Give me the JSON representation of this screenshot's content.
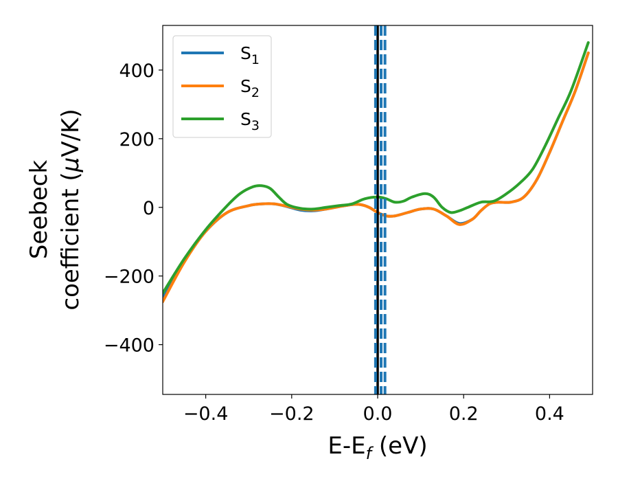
{
  "chart_data": {
    "type": "line",
    "xlabel_main": "E-E",
    "xlabel_sub": "f",
    "xlabel_unit": " (eV)",
    "ylabel_line1": "Seebeck",
    "ylabel_line2_prefix": "coefficient  (",
    "ylabel_mu": "μ",
    "ylabel_line2_suffix": "V/K)",
    "xlim": [
      -0.5,
      0.5
    ],
    "ylim": [
      -545,
      530
    ],
    "xticks": [
      -0.4,
      -0.2,
      0.0,
      0.2,
      0.4
    ],
    "xtick_labels": [
      "−0.4",
      "−0.2",
      "0.0",
      "0.2",
      "0.4"
    ],
    "yticks": [
      -400,
      -200,
      0,
      200,
      400
    ],
    "ytick_labels": [
      "−400",
      "−200",
      "0",
      "200",
      "400"
    ],
    "grid": false,
    "legend_position": "top-left",
    "vertical_lines": [
      {
        "x": 0.0,
        "style": "solid",
        "color": "#000000"
      },
      {
        "x": -0.005,
        "style": "dashed",
        "color": "#1f77b4"
      },
      {
        "x": 0.008,
        "style": "dashed",
        "color": "#1f77b4"
      },
      {
        "x": 0.017,
        "style": "dashed",
        "color": "#1f77b4"
      }
    ],
    "series": [
      {
        "name_main": "S",
        "name_sub": "1",
        "color": "#1f77b4",
        "points": [
          [
            -0.5,
            -260
          ],
          [
            -0.45,
            -155
          ],
          [
            -0.4,
            -70
          ],
          [
            -0.35,
            -15
          ],
          [
            -0.3,
            5
          ],
          [
            -0.27,
            10
          ],
          [
            -0.24,
            10
          ],
          [
            -0.21,
            2
          ],
          [
            -0.18,
            -8
          ],
          [
            -0.15,
            -10
          ],
          [
            -0.12,
            -5
          ],
          [
            -0.09,
            2
          ],
          [
            -0.06,
            8
          ],
          [
            -0.04,
            8
          ],
          [
            -0.02,
            0
          ],
          [
            0.0,
            -15
          ],
          [
            0.02,
            -25
          ],
          [
            0.04,
            -25
          ],
          [
            0.07,
            -15
          ],
          [
            0.1,
            -5
          ],
          [
            0.13,
            -5
          ],
          [
            0.16,
            -25
          ],
          [
            0.19,
            -47
          ],
          [
            0.22,
            -35
          ],
          [
            0.24,
            -10
          ],
          [
            0.26,
            10
          ],
          [
            0.28,
            15
          ],
          [
            0.31,
            15
          ],
          [
            0.34,
            30
          ],
          [
            0.37,
            80
          ],
          [
            0.4,
            160
          ],
          [
            0.43,
            250
          ],
          [
            0.46,
            340
          ],
          [
            0.49,
            450
          ]
        ]
      },
      {
        "name_main": "S",
        "name_sub": "2",
        "color": "#ff7f0e",
        "points": [
          [
            -0.5,
            -275
          ],
          [
            -0.45,
            -160
          ],
          [
            -0.4,
            -70
          ],
          [
            -0.35,
            -15
          ],
          [
            -0.3,
            5
          ],
          [
            -0.27,
            10
          ],
          [
            -0.24,
            10
          ],
          [
            -0.21,
            3
          ],
          [
            -0.18,
            -5
          ],
          [
            -0.15,
            -8
          ],
          [
            -0.12,
            -5
          ],
          [
            -0.09,
            2
          ],
          [
            -0.06,
            8
          ],
          [
            -0.04,
            8
          ],
          [
            -0.02,
            0
          ],
          [
            0.0,
            -15
          ],
          [
            0.02,
            -25
          ],
          [
            0.04,
            -25
          ],
          [
            0.07,
            -15
          ],
          [
            0.1,
            -5
          ],
          [
            0.13,
            -5
          ],
          [
            0.16,
            -25
          ],
          [
            0.19,
            -50
          ],
          [
            0.22,
            -35
          ],
          [
            0.24,
            -10
          ],
          [
            0.26,
            10
          ],
          [
            0.28,
            15
          ],
          [
            0.31,
            15
          ],
          [
            0.34,
            30
          ],
          [
            0.37,
            80
          ],
          [
            0.4,
            160
          ],
          [
            0.43,
            250
          ],
          [
            0.46,
            340
          ],
          [
            0.49,
            450
          ]
        ]
      },
      {
        "name_main": "S",
        "name_sub": "3",
        "color": "#2ca02c",
        "points": [
          [
            -0.5,
            -250
          ],
          [
            -0.45,
            -150
          ],
          [
            -0.4,
            -65
          ],
          [
            -0.35,
            5
          ],
          [
            -0.32,
            40
          ],
          [
            -0.29,
            60
          ],
          [
            -0.27,
            63
          ],
          [
            -0.25,
            55
          ],
          [
            -0.23,
            30
          ],
          [
            -0.21,
            8
          ],
          [
            -0.18,
            -3
          ],
          [
            -0.15,
            -5
          ],
          [
            -0.12,
            0
          ],
          [
            -0.09,
            5
          ],
          [
            -0.06,
            10
          ],
          [
            -0.03,
            25
          ],
          [
            0.0,
            30
          ],
          [
            0.02,
            25
          ],
          [
            0.04,
            15
          ],
          [
            0.06,
            18
          ],
          [
            0.08,
            30
          ],
          [
            0.11,
            40
          ],
          [
            0.13,
            30
          ],
          [
            0.15,
            0
          ],
          [
            0.17,
            -15
          ],
          [
            0.19,
            -10
          ],
          [
            0.21,
            0
          ],
          [
            0.24,
            15
          ],
          [
            0.27,
            18
          ],
          [
            0.3,
            40
          ],
          [
            0.33,
            70
          ],
          [
            0.36,
            110
          ],
          [
            0.39,
            180
          ],
          [
            0.42,
            260
          ],
          [
            0.45,
            340
          ],
          [
            0.49,
            480
          ]
        ]
      }
    ]
  }
}
